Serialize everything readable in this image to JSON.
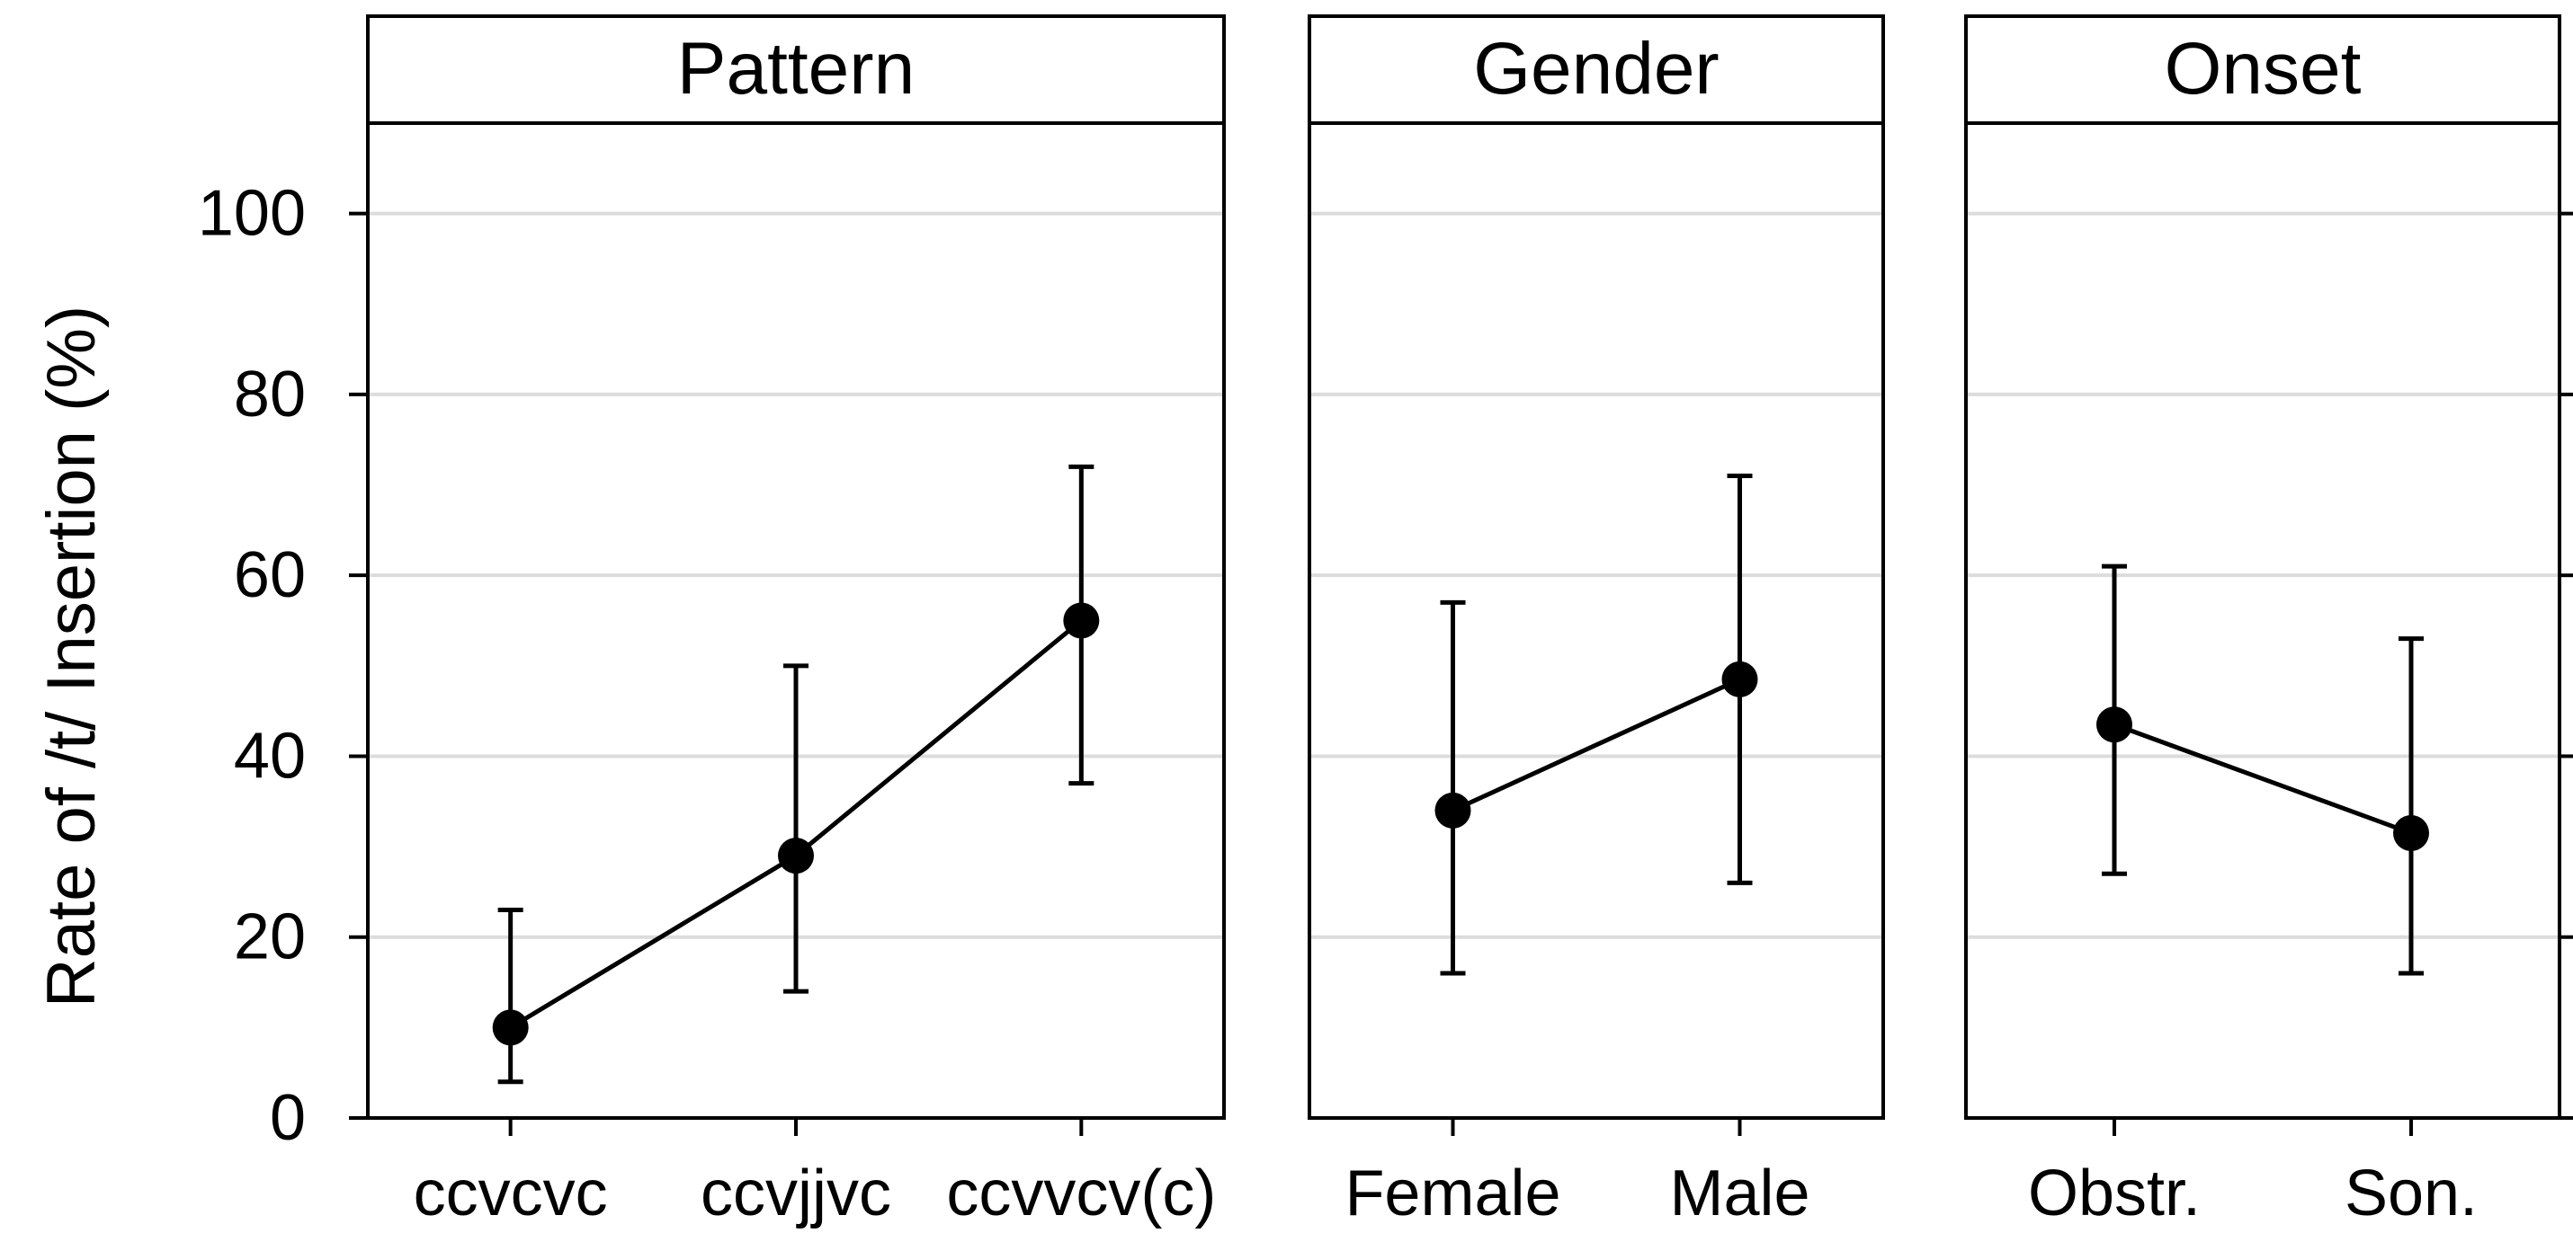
{
  "chart_data": {
    "type": "line",
    "ylabel": "Rate of /t/ Insertion (%)",
    "ylim": [
      0,
      110
    ],
    "yticks": [
      0,
      20,
      40,
      60,
      80,
      100
    ],
    "grid": true,
    "error_bars": true,
    "panels": [
      {
        "title": "Pattern",
        "categories": [
          "ccvcvc",
          "ccvjjvc",
          "ccvvcv(c)"
        ],
        "values": [
          10,
          29,
          55
        ],
        "lower": [
          4,
          14,
          37
        ],
        "upper": [
          23,
          50,
          72
        ]
      },
      {
        "title": "Gender",
        "categories": [
          "Female",
          "Male"
        ],
        "values": [
          34,
          48.5
        ],
        "lower": [
          16,
          26
        ],
        "upper": [
          57,
          71
        ]
      },
      {
        "title": "Onset",
        "categories": [
          "Obstr.",
          "Son."
        ],
        "values": [
          43.5,
          31.5
        ],
        "lower": [
          27,
          16
        ],
        "upper": [
          61,
          53
        ]
      }
    ]
  },
  "colors": {
    "line": "#000000",
    "grid": "#dcdcdc",
    "background": "#ffffff"
  }
}
